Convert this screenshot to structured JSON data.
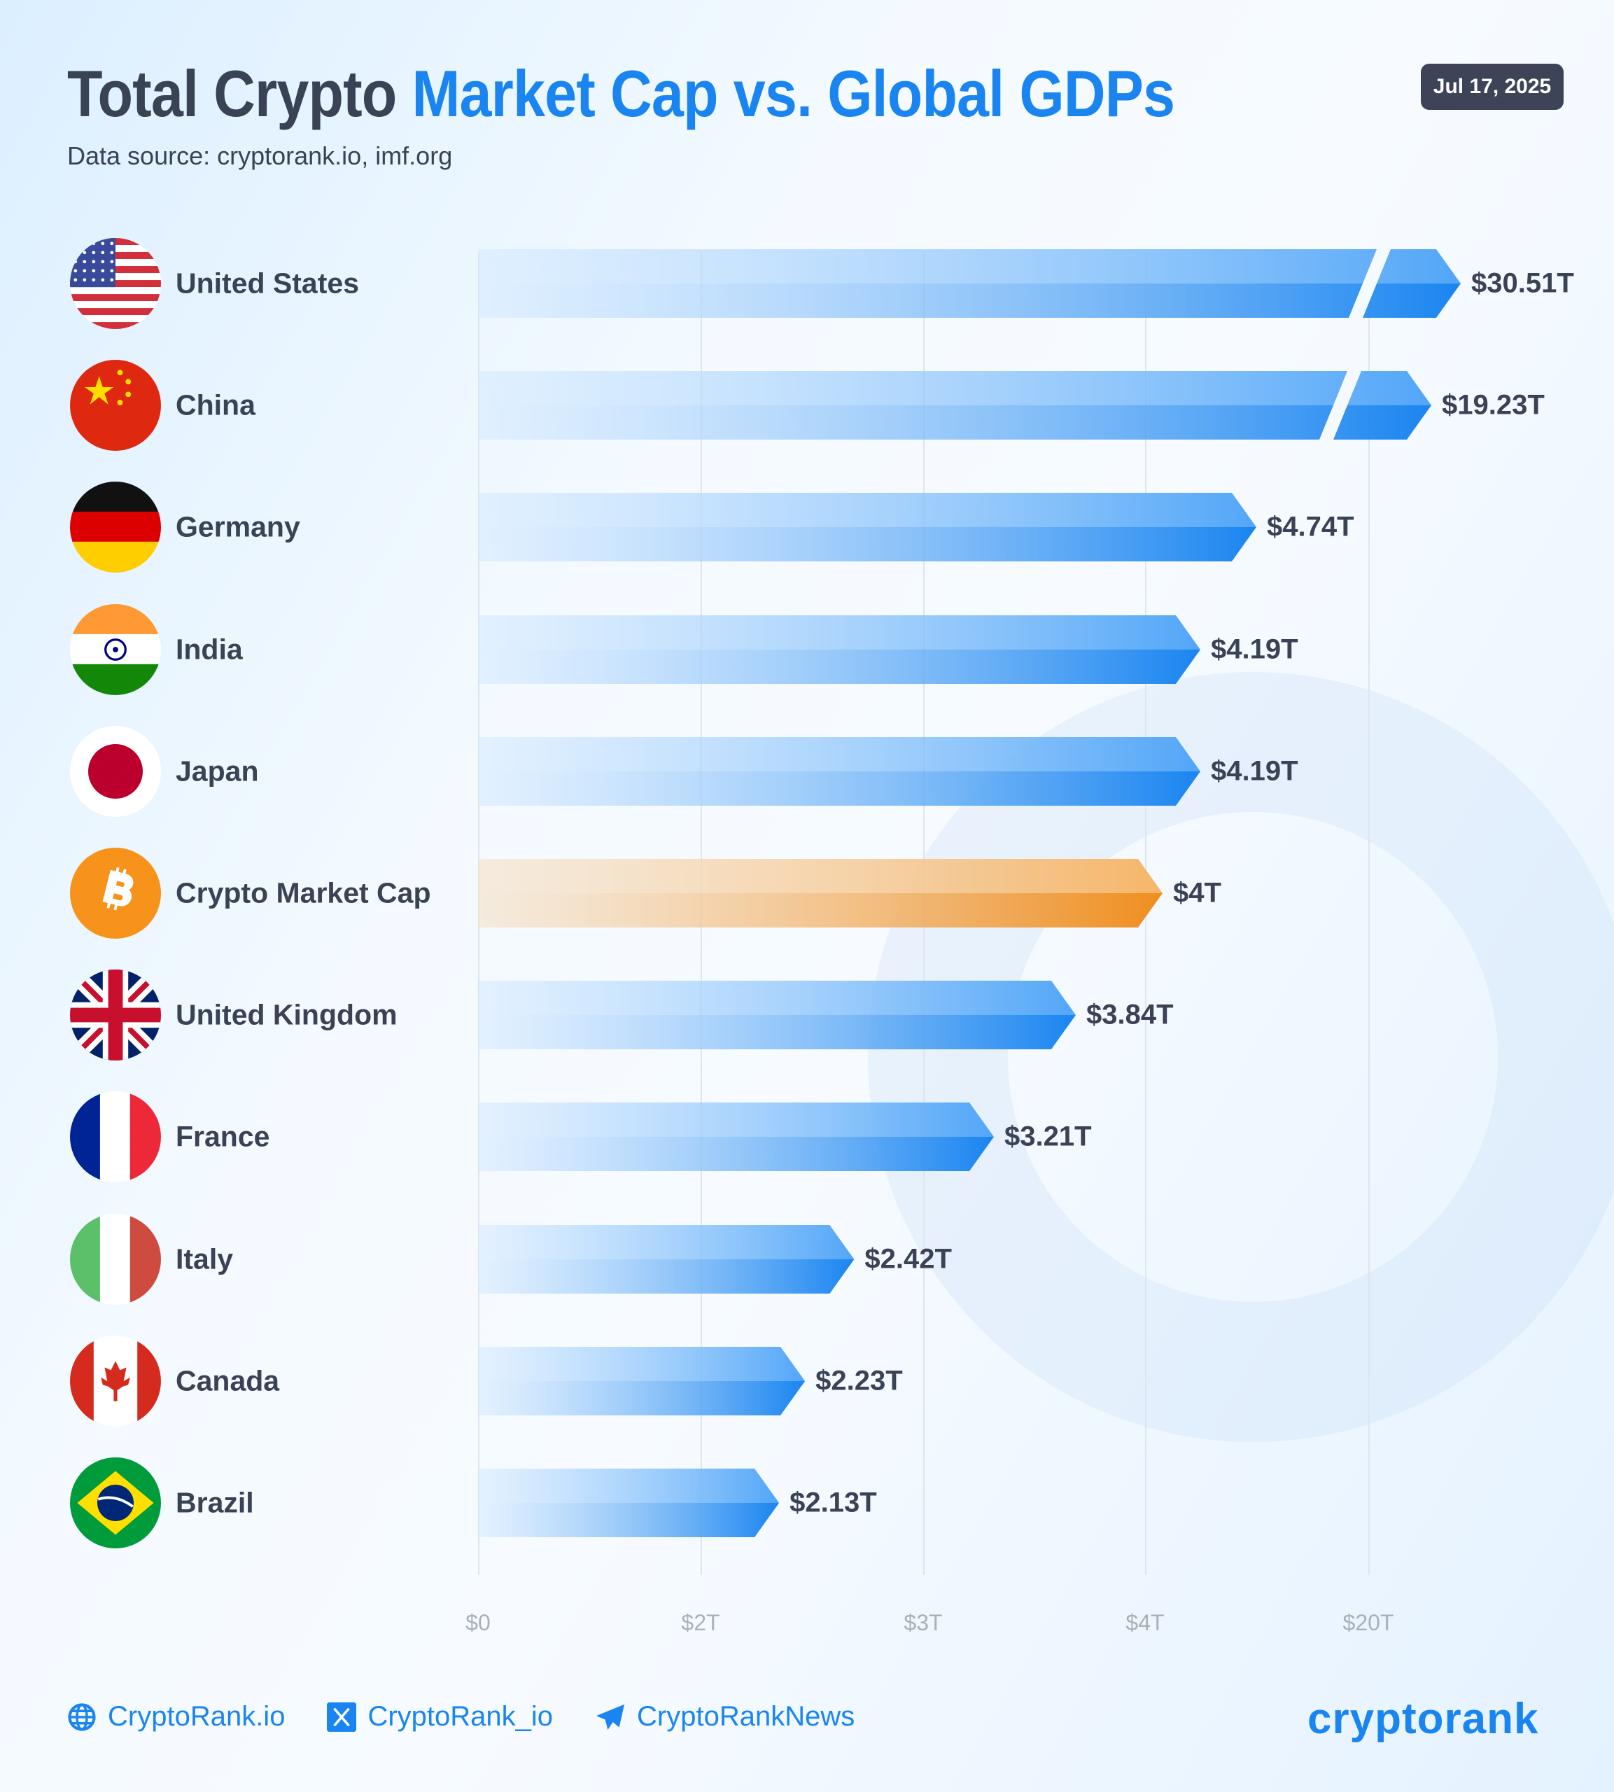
{
  "header": {
    "title_part1": "Total Crypto ",
    "title_part2": "Market Cap vs. Global GDPs",
    "subtitle": "Data source: cryptorank.io, imf.org",
    "date": "Jul 17, 2025"
  },
  "colors": {
    "title": "#3a4256",
    "accent": "#1a85f0",
    "crypto": "#f39325",
    "badge": "#3d4457"
  },
  "chart_data": {
    "type": "bar",
    "orientation": "horizontal",
    "grid": true,
    "axis_scale": "non-linear (broken axis)",
    "xticks": [
      "$0",
      "$2T",
      "$3T",
      "$4T",
      "$20T"
    ],
    "categories": [
      "United States",
      "China",
      "Germany",
      "India",
      "Japan",
      "Crypto Market Cap",
      "United Kingdom",
      "France",
      "Italy",
      "Canada",
      "Brazil"
    ],
    "values": [
      30.51,
      19.23,
      4.74,
      4.19,
      4.19,
      4,
      3.84,
      3.21,
      2.42,
      2.23,
      2.13
    ],
    "labels": [
      "$30.51T",
      "$19.23T",
      "$4.74T",
      "$4.19T",
      "$4.19T",
      "$4T",
      "$3.84T",
      "$3.21T",
      "$2.42T",
      "$2.23T",
      "$2.13T"
    ],
    "icons": [
      "flag-us",
      "flag-cn",
      "flag-de",
      "flag-in",
      "flag-jp",
      "bitcoin",
      "flag-gb",
      "flag-fr",
      "flag-it",
      "flag-ca",
      "flag-br"
    ],
    "broken": [
      true,
      true,
      false,
      false,
      false,
      false,
      false,
      false,
      false,
      false,
      false
    ],
    "unit": "trillion USD"
  },
  "footer": {
    "website": "CryptoRank.io",
    "twitter": "CryptoRank_io",
    "telegram": "CryptoRankNews",
    "logo": "cryptorank"
  }
}
